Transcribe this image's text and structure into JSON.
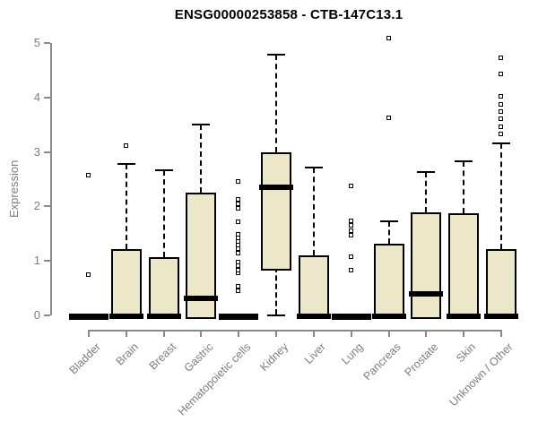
{
  "page": {
    "background": "#ffffff"
  },
  "chart_data": {
    "type": "boxplot",
    "title": "ENSG00000253858 - CTB-147C13.1",
    "xlabel": "",
    "ylabel": "Expression",
    "ylim": [
      0,
      5
    ],
    "yticks": [
      0,
      1,
      2,
      3,
      4,
      5
    ],
    "grid": false,
    "legend": "none",
    "colors": {
      "box_fill": "#EDE7C9",
      "box_stroke": "#000000",
      "axis": "#888888",
      "tick_text": "#7d7d7d",
      "title_text": "#000000"
    },
    "categories": [
      "Bladder",
      "Brain",
      "Breast",
      "Gastric",
      "Hematopoietic cells",
      "Kidney",
      "Liver",
      "Lung",
      "Pancreas",
      "Prostate",
      "Skin",
      "Unknown / Other"
    ],
    "boxes": [
      {
        "label": "Bladder",
        "q1": 0,
        "median": 0,
        "q3": 0,
        "lo": 0,
        "hi": 0,
        "outliers": [
          0.74,
          2.57
        ]
      },
      {
        "label": "Brain",
        "q1": 0,
        "median": 0,
        "q3": 1.22,
        "lo": 0,
        "hi": 2.78,
        "outliers": [
          3.11
        ]
      },
      {
        "label": "Breast",
        "q1": 0,
        "median": 0,
        "q3": 1.07,
        "lo": 0,
        "hi": 2.66,
        "outliers": []
      },
      {
        "label": "Gastric",
        "q1": 0,
        "median": 0.33,
        "q3": 2.25,
        "lo": 0,
        "hi": 3.5,
        "outliers": []
      },
      {
        "label": "Hematopoietic cells",
        "q1": 0,
        "median": 0,
        "q3": 0,
        "lo": 0,
        "hi": 0,
        "outliers": [
          0.44,
          0.53,
          0.77,
          0.83,
          0.9,
          0.97,
          1.13,
          1.21,
          1.28,
          1.35,
          1.42,
          1.48,
          1.71,
          1.96,
          2.04,
          2.12,
          2.45
        ]
      },
      {
        "label": "Kidney",
        "q1": 0.89,
        "median": 2.37,
        "q3": 2.99,
        "lo": 0.02,
        "hi": 4.79,
        "outliers": []
      },
      {
        "label": "Liver",
        "q1": 0,
        "median": 0,
        "q3": 1.1,
        "lo": 0,
        "hi": 2.71,
        "outliers": []
      },
      {
        "label": "Lung",
        "q1": 0,
        "median": 0,
        "q3": 0,
        "lo": 0,
        "hi": 0,
        "outliers": [
          0.82,
          1.07,
          1.46,
          1.55,
          1.64,
          1.73,
          2.37
        ]
      },
      {
        "label": "Pancreas",
        "q1": 0,
        "median": 0,
        "q3": 1.32,
        "lo": 0,
        "hi": 1.73,
        "outliers": [
          3.62,
          5.08
        ]
      },
      {
        "label": "Prostate",
        "q1": 0,
        "median": 0.41,
        "q3": 1.89,
        "lo": 0,
        "hi": 2.63,
        "outliers": []
      },
      {
        "label": "Skin",
        "q1": 0,
        "median": 0,
        "q3": 1.88,
        "lo": 0,
        "hi": 2.83,
        "outliers": []
      },
      {
        "label": "Unknown / Other",
        "q1": 0,
        "median": 0,
        "q3": 1.22,
        "lo": 0,
        "hi": 3.16,
        "outliers": [
          3.32,
          3.45,
          3.6,
          3.73,
          3.87,
          4.01,
          4.42,
          4.72
        ]
      }
    ]
  }
}
